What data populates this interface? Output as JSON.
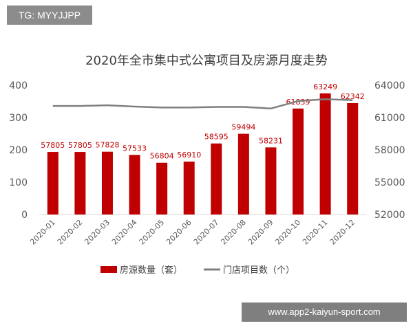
{
  "overlay": {
    "tag": "TG: MYYJJPP",
    "watermark": "www.app2-kaiyun-sport.com"
  },
  "colors": {
    "bar": "#c00000",
    "line": "#7f7f7f",
    "label": "#c00000"
  },
  "chart_data": {
    "type": "bar+line",
    "title": "2020年全市集中式公寓项目及房源月度走势",
    "categories": [
      "2020-01",
      "2020-02",
      "2020-03",
      "2020-04",
      "2020-05",
      "2020-06",
      "2020-07",
      "2020-08",
      "2020-09",
      "2020-10",
      "2020-11",
      "2020-12"
    ],
    "series": [
      {
        "name": "房源数量（套）",
        "type": "bar",
        "axis": "right",
        "values": [
          57805,
          57805,
          57828,
          57533,
          56804,
          56910,
          58595,
          59494,
          58231,
          61839,
          63249,
          62342
        ],
        "labels": [
          "57805",
          "57805",
          "57828",
          "57533",
          "56804",
          "56910",
          "58595",
          "59494",
          "58231",
          "61839",
          "63249",
          "62342"
        ]
      },
      {
        "name": "门店项目数（个）",
        "type": "line",
        "axis": "left",
        "values": [
          336,
          336,
          338,
          334,
          331,
          331,
          333,
          333,
          328,
          351,
          357,
          354
        ]
      }
    ],
    "left_axis": {
      "min": 0,
      "max": 400,
      "ticks": [
        "0",
        "100",
        "200",
        "300",
        "400"
      ],
      "tick_values": [
        0,
        100,
        200,
        300,
        400
      ]
    },
    "right_axis": {
      "min": 52000,
      "max": 64000,
      "ticks": [
        "52000",
        "55000",
        "58000",
        "61000",
        "64000"
      ],
      "tick_values": [
        52000,
        55000,
        58000,
        61000,
        64000
      ]
    },
    "legend": [
      "房源数量（套）",
      "门店项目数（个）"
    ],
    "legend_position": "bottom"
  }
}
